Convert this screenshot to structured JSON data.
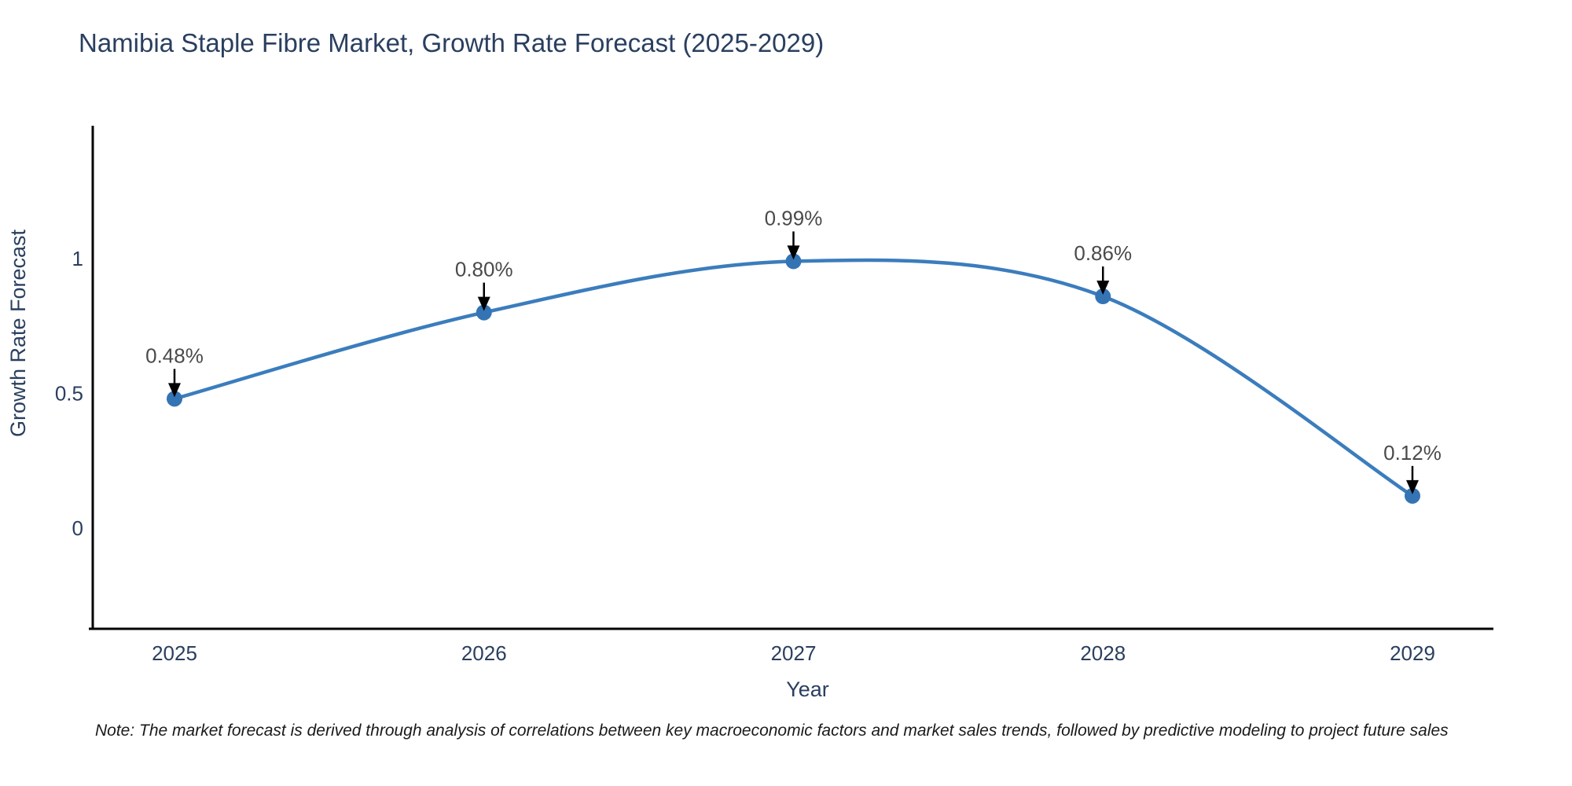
{
  "title": "Namibia Staple Fibre Market, Growth Rate Forecast (2025-2029)",
  "note": "Note: The market forecast is derived through analysis of correlations between key macroeconomic factors and market sales trends, followed by predictive modeling to project future sales",
  "chart_data": {
    "type": "line",
    "title": "Namibia Staple Fibre Market, Growth Rate Forecast (2025-2029)",
    "xlabel": "Year",
    "ylabel": "Growth Rate Forecast",
    "categories": [
      "2025",
      "2026",
      "2027",
      "2028",
      "2029"
    ],
    "series": [
      {
        "name": "Growth Rate Forecast",
        "values": [
          0.48,
          0.8,
          0.99,
          0.86,
          0.12
        ],
        "point_labels": [
          "0.48%",
          "0.80%",
          "0.99%",
          "0.86%",
          "0.12%"
        ]
      }
    ],
    "line_shape": "spline",
    "markers": true,
    "annotations_with_arrows": true,
    "yticks": [
      0,
      0.5,
      1
    ],
    "ytick_labels": [
      "0",
      "0.5",
      "1"
    ],
    "ylim": [
      -0.37,
      1.49
    ],
    "grid": false,
    "legend_position": "none",
    "colors": {
      "line": "#3b7dbd",
      "marker": "#3474b4",
      "axis_line": "#000000",
      "axis_text": "#2a3f5f",
      "annotation_text": "#4a4a4a",
      "annotation_arrow": "#000000",
      "background": "#ffffff"
    }
  }
}
